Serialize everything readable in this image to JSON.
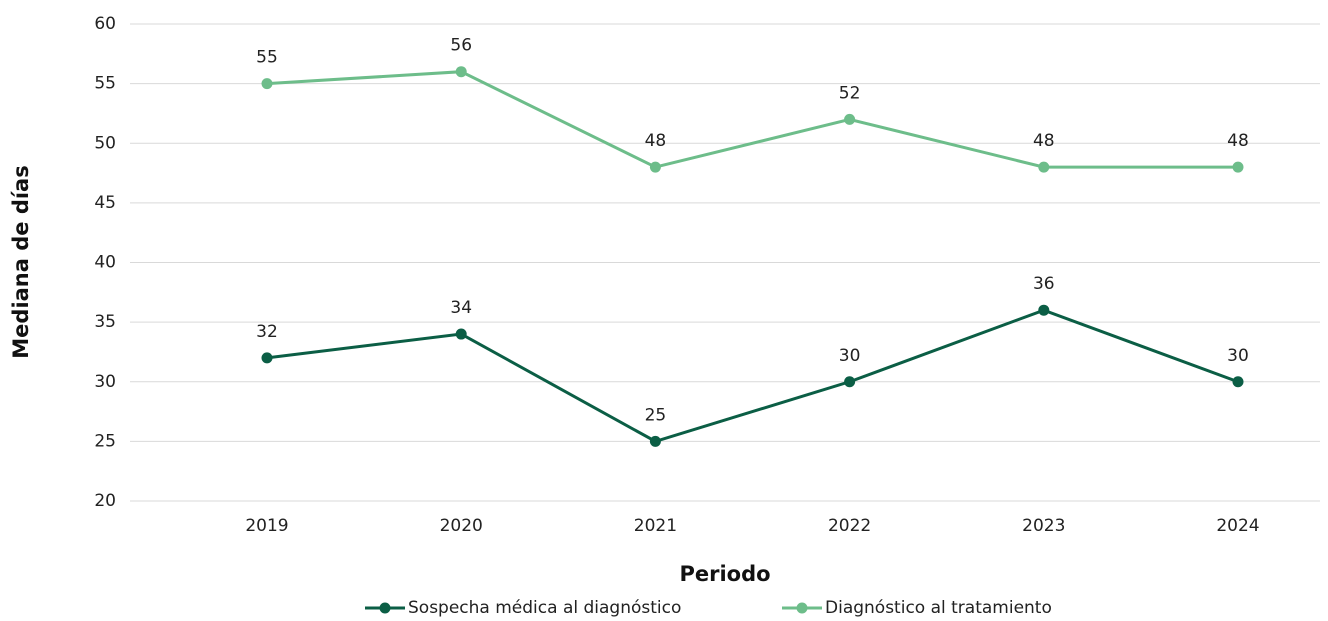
{
  "chart_data": {
    "type": "line",
    "x_label": "Periodo",
    "y_label": "Mediana de días",
    "categories": [
      "2019",
      "2020",
      "2021",
      "2022",
      "2023",
      "2024"
    ],
    "series": [
      {
        "name": "Sospecha médica al diagnóstico",
        "color": "#0b5e45",
        "values": [
          32,
          34,
          25,
          30,
          36,
          30
        ]
      },
      {
        "name": "Diagnóstico al tratamiento",
        "color": "#6dbd8a",
        "values": [
          55,
          56,
          48,
          52,
          48,
          48
        ]
      }
    ],
    "ylim": [
      20,
      60
    ],
    "yticks": [
      20,
      25,
      30,
      35,
      40,
      45,
      50,
      55,
      60
    ],
    "grid": true,
    "legend": "bottom"
  }
}
